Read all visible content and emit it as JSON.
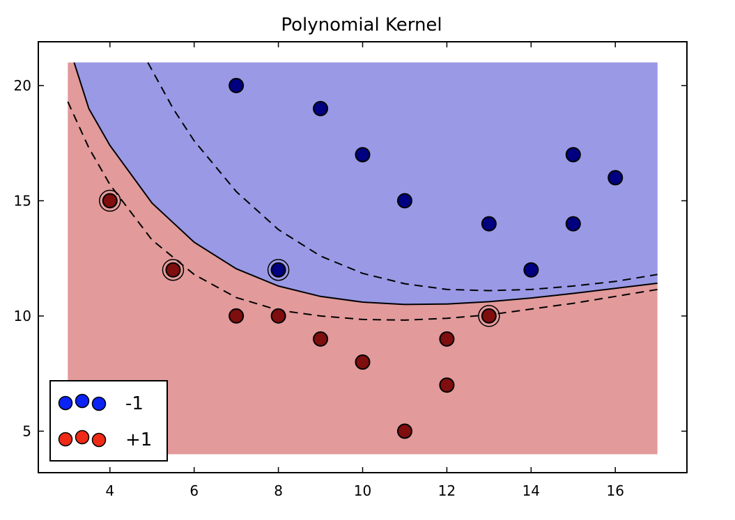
{
  "chart_data": {
    "type": "scatter",
    "title": "Polynomial Kernel",
    "xlabel": "",
    "ylabel": "",
    "xlim": [
      2.3,
      17.7
    ],
    "ylim": [
      3.2,
      21.9
    ],
    "xticks": [
      4,
      6,
      8,
      10,
      12,
      14,
      16
    ],
    "yticks": [
      5,
      10,
      15,
      20
    ],
    "region_extent": {
      "x": [
        3,
        17
      ],
      "y": [
        4,
        21
      ]
    },
    "colors": {
      "region_neg": "#9999e6",
      "region_pos": "#e29a9a",
      "point_neg": "#000080",
      "point_pos": "#7f0e0e",
      "legend_neg": "#0b23f4",
      "legend_pos": "#ef2a16"
    },
    "series": [
      {
        "name": "-1",
        "points": [
          [
            7,
            20
          ],
          [
            9,
            19
          ],
          [
            10,
            17
          ],
          [
            11,
            15
          ],
          [
            13,
            14
          ],
          [
            15,
            17
          ],
          [
            16,
            16
          ],
          [
            15,
            14
          ],
          [
            14,
            12
          ],
          [
            8,
            12
          ]
        ]
      },
      {
        "name": "+1",
        "points": [
          [
            4,
            15
          ],
          [
            5.5,
            12
          ],
          [
            7,
            10
          ],
          [
            8,
            10
          ],
          [
            9,
            9
          ],
          [
            10,
            8
          ],
          [
            11,
            5
          ],
          [
            12,
            9
          ],
          [
            12,
            7
          ],
          [
            13,
            10
          ]
        ]
      }
    ],
    "support_vectors": [
      [
        4,
        15
      ],
      [
        5.5,
        12
      ],
      [
        8,
        12
      ],
      [
        13,
        10
      ]
    ],
    "boundary": {
      "decision": [
        [
          3.15,
          21
        ],
        [
          3.5,
          19
        ],
        [
          4,
          17.4
        ],
        [
          5,
          14.9
        ],
        [
          6,
          13.2
        ],
        [
          7,
          12.05
        ],
        [
          8,
          11.3
        ],
        [
          9,
          10.85
        ],
        [
          10,
          10.6
        ],
        [
          11,
          10.5
        ],
        [
          12,
          10.52
        ],
        [
          13,
          10.62
        ],
        [
          14,
          10.78
        ],
        [
          15,
          10.98
        ],
        [
          16,
          11.2
        ],
        [
          17,
          11.42
        ]
      ],
      "margin_upper": [
        [
          4.9,
          21
        ],
        [
          5.5,
          19
        ],
        [
          6,
          17.6
        ],
        [
          7,
          15.4
        ],
        [
          8,
          13.75
        ],
        [
          9,
          12.6
        ],
        [
          10,
          11.85
        ],
        [
          11,
          11.4
        ],
        [
          12,
          11.15
        ],
        [
          13,
          11.1
        ],
        [
          14,
          11.15
        ],
        [
          15,
          11.3
        ],
        [
          16,
          11.5
        ],
        [
          17,
          11.8
        ]
      ],
      "margin_lower": [
        [
          3,
          19.3
        ],
        [
          3.5,
          17.3
        ],
        [
          4,
          15.7
        ],
        [
          5,
          13.3
        ],
        [
          6,
          11.8
        ],
        [
          7,
          10.8
        ],
        [
          8,
          10.25
        ],
        [
          9,
          10
        ],
        [
          10,
          9.85
        ],
        [
          11,
          9.82
        ],
        [
          12,
          9.9
        ],
        [
          13,
          10.05
        ],
        [
          14,
          10.3
        ],
        [
          15,
          10.55
        ],
        [
          16,
          10.85
        ],
        [
          17,
          11.15
        ]
      ]
    },
    "legend": {
      "position": "lower-left",
      "entries": [
        "-1",
        "+1"
      ]
    },
    "grid": false
  }
}
